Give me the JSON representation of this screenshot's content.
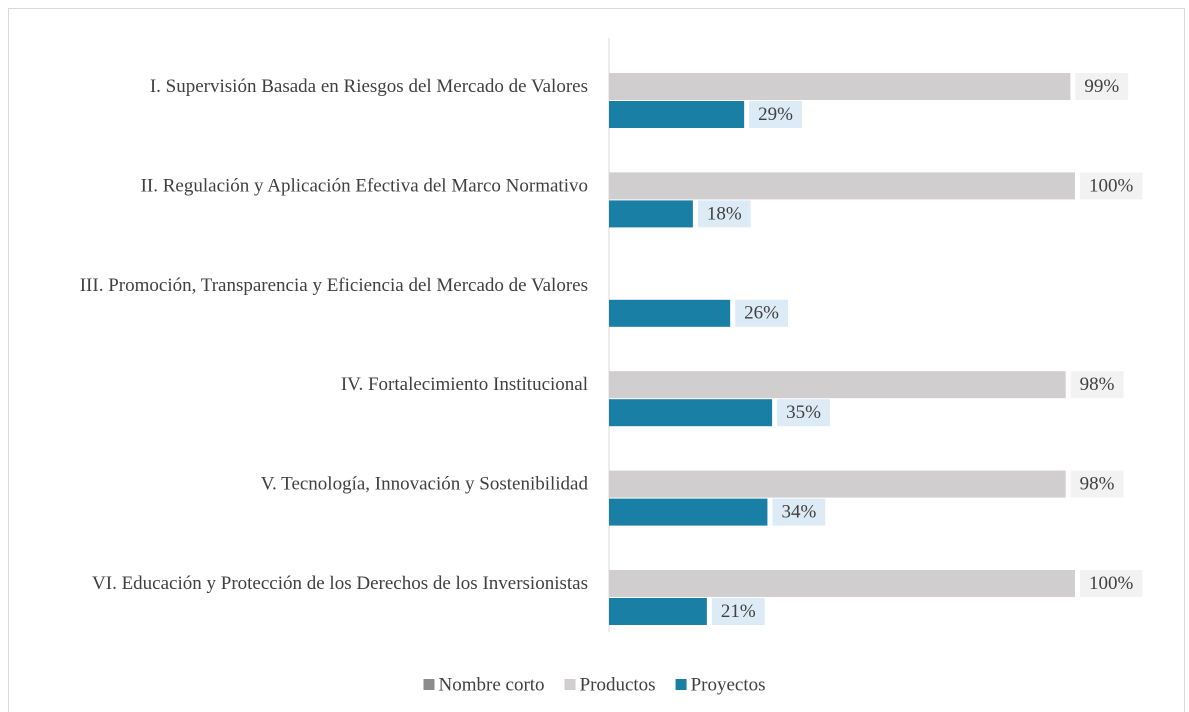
{
  "chart_data": {
    "type": "bar",
    "orientation": "horizontal",
    "categories": [
      "I. Supervisión  Basada en Riesgos del Mercado de Valores",
      "II. Regulación  y Aplicación Efectiva del Marco Normativo",
      "III. Promoción, Transparencia y Eficiencia del Mercado de Valores",
      "IV. Fortalecimiento Institucional",
      "V. Tecnología, Innovación y Sostenibilidad",
      "VI. Educación y Protección de los Derechos de los Inversionistas"
    ],
    "series": [
      {
        "name": "Nombre corto",
        "color": "#8c8c8c",
        "values": [
          null,
          null,
          null,
          null,
          null,
          null
        ]
      },
      {
        "name": "Productos",
        "color": "#d0cece",
        "values": [
          99,
          100,
          null,
          98,
          98,
          100
        ],
        "value_labels": [
          "99%",
          "100%",
          null,
          "98%",
          "98%",
          "100%"
        ],
        "label_bg": "#f2f2f2"
      },
      {
        "name": "Proyectos",
        "color": "#1a7fa5",
        "values": [
          29,
          18,
          26,
          35,
          34,
          21
        ],
        "value_labels": [
          "29%",
          "18%",
          "26%",
          "35%",
          "34%",
          "21%"
        ],
        "label_bg": "#ddebf7"
      }
    ],
    "xlim": [
      0,
      100
    ],
    "legend": "bottom"
  }
}
